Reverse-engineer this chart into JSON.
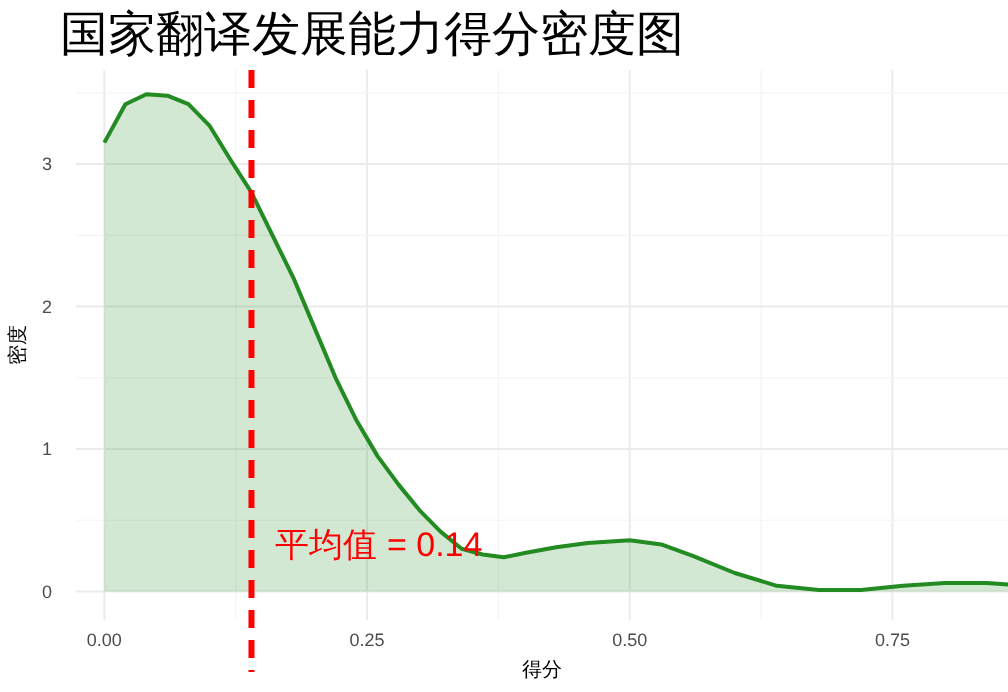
{
  "chart_data": {
    "type": "area",
    "title": "国家翻译发展能力得分密度图",
    "xlabel": "得分",
    "ylabel": "密度",
    "x": [
      0,
      0.02,
      0.04,
      0.06,
      0.08,
      0.1,
      0.12,
      0.14,
      0.16,
      0.18,
      0.2,
      0.22,
      0.24,
      0.26,
      0.28,
      0.3,
      0.32,
      0.34,
      0.36,
      0.38,
      0.4,
      0.43,
      0.46,
      0.5,
      0.53,
      0.56,
      0.6,
      0.64,
      0.68,
      0.72,
      0.76,
      0.8,
      0.84,
      0.86
    ],
    "series": [
      {
        "color": "#228b22",
        "values": [
          3.15,
          3.42,
          3.49,
          3.48,
          3.42,
          3.27,
          3.03,
          2.8,
          2.5,
          2.2,
          1.85,
          1.5,
          1.2,
          0.95,
          0.75,
          0.57,
          0.42,
          0.3,
          0.26,
          0.24,
          0.27,
          0.31,
          0.34,
          0.36,
          0.33,
          0.25,
          0.13,
          0.04,
          0.01,
          0.01,
          0.04,
          0.06,
          0.06,
          0.05
        ]
      }
    ],
    "xlim": [
      -0.027,
      0.86
    ],
    "ylim": [
      -0.2,
      3.66
    ],
    "xticks": [
      {
        "value": 0,
        "label": "0.00"
      },
      {
        "value": 0.25,
        "label": "0.25"
      },
      {
        "value": 0.5,
        "label": "0.50"
      },
      {
        "value": 0.75,
        "label": "0.75"
      }
    ],
    "yticks": [
      0,
      1,
      2,
      3
    ],
    "grid": true,
    "ref_lines": [
      {
        "axis": "x",
        "value": 0.14,
        "label": "平均值 = 0.14",
        "color": "#ff0000",
        "line_style": "dashed"
      }
    ]
  }
}
